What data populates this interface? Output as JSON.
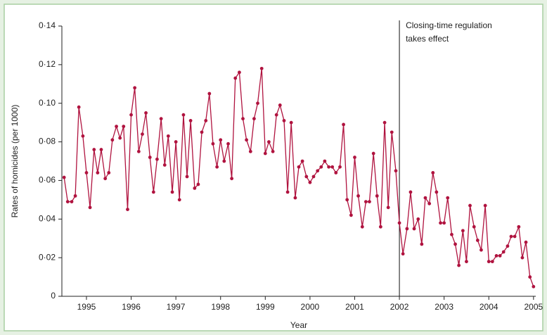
{
  "chart_data": {
    "type": "line",
    "x_label": "Year",
    "y_label": "Rates of homicides (per 1000)",
    "annotation": {
      "x": 2002.5,
      "lines": [
        "Closing-time regulation",
        "takes effect"
      ]
    },
    "xlim": [
      1994.95,
      2005.55
    ],
    "ylim": [
      0,
      0.14
    ],
    "xticks": [
      {
        "value": 1995.5,
        "label": "1995"
      },
      {
        "value": 1996.5,
        "label": "1996"
      },
      {
        "value": 1997.5,
        "label": "1997"
      },
      {
        "value": 1998.5,
        "label": "1998"
      },
      {
        "value": 1999.5,
        "label": "1999"
      },
      {
        "value": 2000.5,
        "label": "2000"
      },
      {
        "value": 2001.5,
        "label": "2001"
      },
      {
        "value": 2002.5,
        "label": "2002"
      },
      {
        "value": 2003.5,
        "label": "2003"
      },
      {
        "value": 2004.5,
        "label": "2004"
      },
      {
        "value": 2005.5,
        "label": "2005"
      }
    ],
    "yticks": [
      0,
      {
        "value": 0.02,
        "label": "0·02"
      },
      {
        "value": 0.04,
        "label": "0·04"
      },
      {
        "value": 0.06,
        "label": "0·06"
      },
      {
        "value": 0.08,
        "label": "0·08"
      },
      {
        "value": 0.1,
        "label": "0·10"
      },
      {
        "value": 0.12,
        "label": "0·12"
      },
      {
        "value": 0.14,
        "label": "0·14"
      }
    ],
    "x": [
      1995.0,
      1995.08,
      1995.17,
      1995.25,
      1995.33,
      1995.42,
      1995.5,
      1995.58,
      1995.67,
      1995.75,
      1995.83,
      1995.92,
      1996.0,
      1996.08,
      1996.17,
      1996.25,
      1996.33,
      1996.42,
      1996.5,
      1996.58,
      1996.67,
      1996.75,
      1996.83,
      1996.92,
      1997.0,
      1997.08,
      1997.17,
      1997.25,
      1997.33,
      1997.42,
      1997.5,
      1997.58,
      1997.67,
      1997.75,
      1997.83,
      1997.92,
      1998.0,
      1998.08,
      1998.17,
      1998.25,
      1998.33,
      1998.42,
      1998.5,
      1998.58,
      1998.67,
      1998.75,
      1998.83,
      1998.92,
      1999.0,
      1999.08,
      1999.17,
      1999.25,
      1999.33,
      1999.42,
      1999.5,
      1999.58,
      1999.67,
      1999.75,
      1999.83,
      1999.92,
      2000.0,
      2000.08,
      2000.17,
      2000.25,
      2000.33,
      2000.42,
      2000.5,
      2000.58,
      2000.67,
      2000.75,
      2000.83,
      2000.92,
      2001.0,
      2001.08,
      2001.17,
      2001.25,
      2001.33,
      2001.42,
      2001.5,
      2001.58,
      2001.67,
      2001.75,
      2001.83,
      2001.92,
      2002.0,
      2002.08,
      2002.17,
      2002.25,
      2002.33,
      2002.42,
      2002.5,
      2002.58,
      2002.67,
      2002.75,
      2002.83,
      2002.92,
      2003.0,
      2003.08,
      2003.17,
      2003.25,
      2003.33,
      2003.42,
      2003.5,
      2003.58,
      2003.67,
      2003.75,
      2003.83,
      2003.92,
      2004.0,
      2004.08,
      2004.17,
      2004.25,
      2004.33,
      2004.42,
      2004.5,
      2004.58,
      2004.67,
      2004.75,
      2004.83,
      2004.92,
      2005.0,
      2005.08,
      2005.17,
      2005.25,
      2005.33,
      2005.42,
      2005.5
    ],
    "series": [
      {
        "color": "#b0133f",
        "values": [
          0.0616,
          0.049,
          0.049,
          0.052,
          0.098,
          0.083,
          0.064,
          0.046,
          0.076,
          0.064,
          0.076,
          0.061,
          0.064,
          0.081,
          0.088,
          0.082,
          0.088,
          0.045,
          0.094,
          0.108,
          0.075,
          0.084,
          0.095,
          0.072,
          0.054,
          0.071,
          0.092,
          0.068,
          0.083,
          0.054,
          0.08,
          0.05,
          0.094,
          0.062,
          0.091,
          0.056,
          0.058,
          0.085,
          0.091,
          0.105,
          0.079,
          0.067,
          0.081,
          0.07,
          0.079,
          0.061,
          0.113,
          0.116,
          0.092,
          0.081,
          0.075,
          0.092,
          0.1,
          0.118,
          0.074,
          0.08,
          0.075,
          0.094,
          0.099,
          0.091,
          0.054,
          0.09,
          0.051,
          0.067,
          0.07,
          0.062,
          0.059,
          0.062,
          0.065,
          0.067,
          0.07,
          0.067,
          0.067,
          0.064,
          0.067,
          0.089,
          0.05,
          0.042,
          0.072,
          0.052,
          0.036,
          0.049,
          0.049,
          0.074,
          0.052,
          0.036,
          0.09,
          0.046,
          0.085,
          0.065,
          0.038,
          0.022,
          0.035,
          0.054,
          0.035,
          0.04,
          0.027,
          0.051,
          0.048,
          0.064,
          0.054,
          0.038,
          0.038,
          0.051,
          0.032,
          0.027,
          0.016,
          0.034,
          0.018,
          0.047,
          0.036,
          0.029,
          0.024,
          0.047,
          0.018,
          0.018,
          0.021,
          0.021,
          0.023,
          0.026,
          0.031,
          0.031,
          0.036,
          0.02,
          0.028,
          0.01,
          0.005
        ]
      }
    ]
  }
}
